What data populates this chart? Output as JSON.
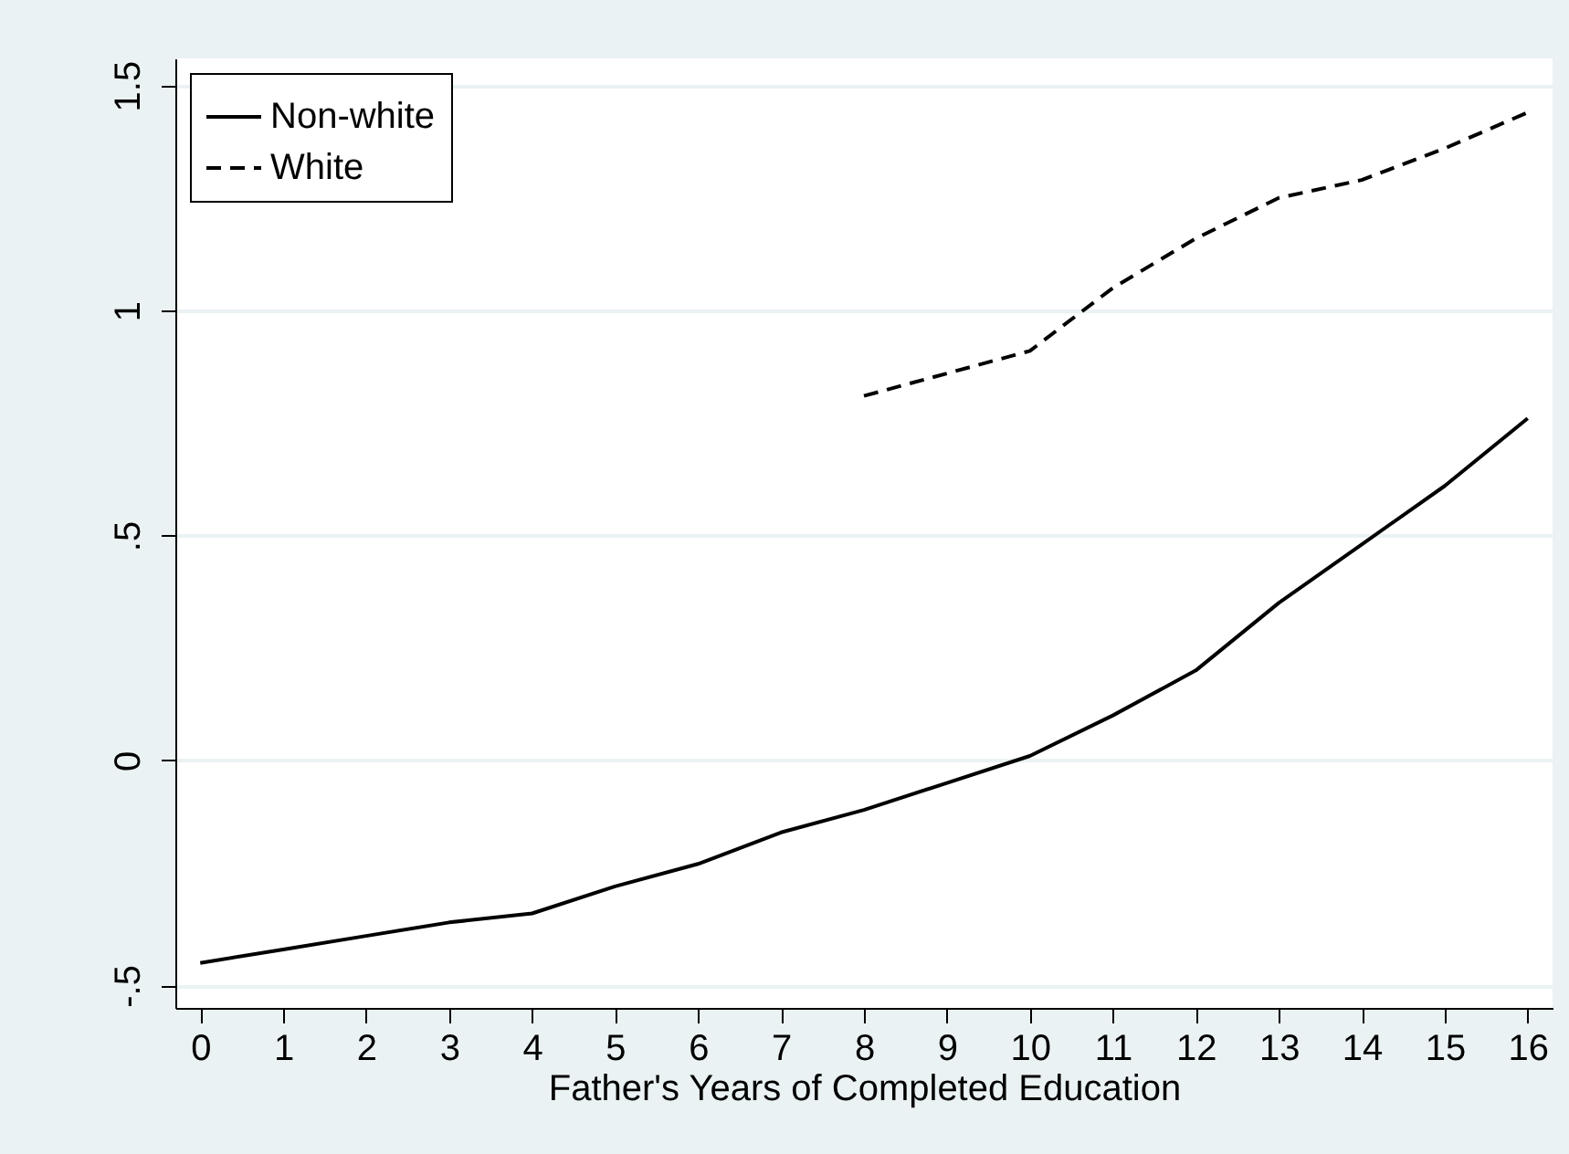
{
  "chart_data": {
    "type": "line",
    "xlabel": "Father's Years of Completed Education",
    "x": [
      0,
      1,
      2,
      3,
      4,
      5,
      6,
      7,
      8,
      9,
      10,
      11,
      12,
      13,
      14,
      15,
      16
    ],
    "series": [
      {
        "name": "Non-white",
        "color": "#000000",
        "line_style": "solid",
        "values": [
          -0.45,
          -0.42,
          -0.39,
          -0.36,
          -0.34,
          -0.28,
          -0.23,
          -0.16,
          -0.11,
          -0.05,
          0.01,
          0.1,
          0.2,
          0.35,
          0.48,
          0.61,
          0.76
        ]
      },
      {
        "name": "White",
        "color": "#000000",
        "line_style": "dashed",
        "values": [
          null,
          null,
          null,
          null,
          null,
          null,
          null,
          null,
          0.81,
          0.86,
          0.91,
          1.05,
          1.16,
          1.25,
          1.29,
          1.36,
          1.44
        ]
      }
    ],
    "xlim": [
      -0.3,
      16.3
    ],
    "xticks": [
      0,
      1,
      2,
      3,
      4,
      5,
      6,
      7,
      8,
      9,
      10,
      11,
      12,
      13,
      14,
      15,
      16
    ],
    "ylim": [
      -0.55,
      1.56
    ],
    "yticks": [
      {
        "value": -0.5,
        "label": "-.5"
      },
      0,
      {
        "value": 0.5,
        "label": ".5"
      },
      1,
      1.5
    ],
    "grid": "y",
    "legend": "top left",
    "marker": "none"
  }
}
